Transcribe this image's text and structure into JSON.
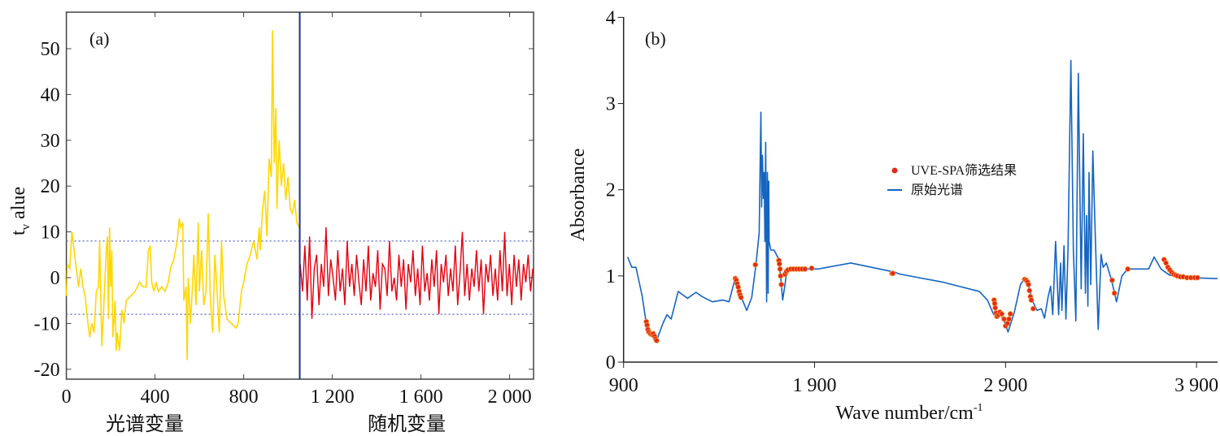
{
  "chart_data": [
    {
      "type": "line",
      "panel_label": "(a)",
      "ylabel": "t",
      "ylabel_sub": "v",
      "ylabel_rest": " alue",
      "xlabel_left": "光谱变量",
      "xlabel_right": "随机变量",
      "xlim": [
        0,
        2108
      ],
      "ylim": [
        -22,
        58
      ],
      "xticks": [
        0,
        400,
        800,
        1200,
        1600,
        2000
      ],
      "xtick_labels": [
        "0",
        "400",
        "800",
        "1 200",
        "1 600",
        "2 000"
      ],
      "yticks": [
        -20,
        -10,
        0,
        10,
        20,
        30,
        40,
        50
      ],
      "ytick_labels": [
        "-20",
        "-10",
        "0",
        "10",
        "20",
        "30",
        "40",
        "50"
      ],
      "divider_x": 1053,
      "threshold": [
        -8,
        8
      ],
      "colors": {
        "spectral": "#ffd700",
        "random": "#e3000f",
        "divider": "#1a2f8c",
        "threshold": "#6f7fd0"
      },
      "spectral_series": {
        "name": "spectral variables",
        "x": [
          0,
          5,
          15,
          25,
          35,
          45,
          55,
          65,
          75,
          85,
          95,
          105,
          115,
          125,
          135,
          145,
          150,
          160,
          170,
          180,
          185,
          190,
          195,
          200,
          205,
          210,
          220,
          225,
          230,
          240,
          250,
          260,
          270,
          290,
          310,
          330,
          345,
          360,
          370,
          378,
          385,
          395,
          405,
          415,
          430,
          445,
          460,
          470,
          485,
          500,
          510,
          515,
          525,
          530,
          540,
          545,
          550,
          560,
          570,
          575,
          585,
          595,
          600,
          610,
          620,
          630,
          640,
          650,
          660,
          670,
          680,
          690,
          700,
          710,
          725,
          745,
          765,
          775,
          790,
          800,
          815,
          830,
          845,
          860,
          870,
          875,
          885,
          895,
          905,
          915,
          925,
          930,
          938,
          945,
          950,
          960,
          970,
          980,
          990,
          1000,
          1010,
          1020,
          1030,
          1040,
          1050
        ],
        "y": [
          -4,
          3,
          2,
          10,
          6,
          2,
          -2,
          2,
          -2,
          -4,
          -9,
          -13,
          -10,
          -12,
          -3,
          -2,
          8,
          -15,
          -5,
          6,
          9,
          -9,
          11,
          -2,
          6,
          -13,
          -5,
          -16,
          -12,
          -16,
          -7,
          -10,
          -5,
          -4,
          -3,
          -1,
          -2,
          -2,
          6,
          7,
          -1,
          -3,
          -1,
          -3,
          -2,
          -3,
          -1,
          2,
          4,
          8,
          13,
          11,
          12,
          -5,
          -2,
          -18,
          0,
          -10,
          -1,
          5,
          -6,
          12,
          -3,
          6,
          -6,
          -3,
          14,
          -5,
          -12,
          5,
          -3,
          -12,
          8,
          -4,
          -9,
          -10,
          -11,
          -10,
          -3,
          -1,
          3,
          5,
          8,
          4,
          11,
          6,
          15,
          19,
          9,
          26,
          22,
          54,
          25,
          37,
          15,
          30,
          20,
          25,
          17,
          22,
          15,
          14,
          17,
          12,
          11
        ]
      },
      "random_series": {
        "name": "random variables",
        "x_start": 1055,
        "x_end": 2105,
        "y": [
          3,
          -3,
          7,
          -5,
          9,
          -9,
          2,
          5,
          -6,
          3,
          -2,
          11,
          -4,
          4,
          0,
          -5,
          6,
          -3,
          2,
          -6,
          8,
          -2,
          3,
          -4,
          5,
          -1,
          -6,
          4,
          -3,
          7,
          -5,
          1,
          -2,
          6,
          -7,
          3,
          2,
          -4,
          8,
          -3,
          0,
          -5,
          5,
          -2,
          4,
          -7,
          3,
          -1,
          6,
          -4,
          2,
          -6,
          7,
          -3,
          1,
          -5,
          4,
          -2,
          6,
          -8,
          3,
          -1,
          5,
          -4,
          2,
          -3,
          7,
          -6,
          1,
          10,
          -4,
          3,
          -5,
          2,
          -2,
          6,
          -3,
          4,
          -8,
          3,
          -1,
          5,
          -4,
          2,
          -5,
          6,
          -3,
          10,
          -4,
          3,
          -6,
          5,
          -2,
          4,
          -5,
          3,
          -1,
          5,
          -3,
          2
        ]
      }
    },
    {
      "type": "line",
      "panel_label": "(b)",
      "xlabel": "Wave number/cm",
      "xlabel_sup": "-1",
      "ylabel": "Absorbance",
      "xlim": [
        900,
        4010
      ],
      "ylim": [
        0,
        4
      ],
      "xticks": [
        900,
        1900,
        2900,
        3900
      ],
      "xtick_labels": [
        "900",
        "1 900",
        "2 900",
        "3 900"
      ],
      "yticks": [
        0,
        1,
        2,
        3,
        4
      ],
      "ytick_labels": [
        "0",
        "1",
        "2",
        "3",
        "4"
      ],
      "legend": {
        "position": "center",
        "items": [
          {
            "label": "UVE-SPA筛选结果",
            "marker": "dot",
            "color": "#e32a1a"
          },
          {
            "label": "原始光谱",
            "marker": "line",
            "color": "#1565c0"
          }
        ]
      },
      "spectrum": {
        "x": [
          921,
          943,
          965,
          997,
          1019,
          1051,
          1073,
          1106,
          1127,
          1149,
          1186,
          1235,
          1279,
          1311,
          1365,
          1420,
          1452,
          1484,
          1517,
          1545,
          1571,
          1593,
          1610,
          1615,
          1619,
          1623,
          1627,
          1632,
          1636,
          1640,
          1644,
          1649,
          1653,
          1657,
          1660,
          1662,
          1671,
          1688,
          1711,
          1722,
          1733,
          1755,
          1798,
          1917,
          2090,
          2307,
          2350,
          2567,
          2762,
          2805,
          2838,
          2870,
          2892,
          2913,
          2946,
          2978,
          3000,
          3021,
          3043,
          3065,
          3087,
          3104,
          3123,
          3136,
          3147,
          3162,
          3178,
          3188,
          3195,
          3206,
          3216,
          3227,
          3242,
          3255,
          3268,
          3281,
          3296,
          3307,
          3318,
          3324,
          3331,
          3337,
          3346,
          3357,
          3368,
          3385,
          3400,
          3411,
          3428,
          3455,
          3481,
          3509,
          3539,
          3649,
          3678,
          3714,
          3758,
          3866,
          3996,
          4010
        ],
        "y": [
          1.22,
          1.1,
          1.1,
          0.77,
          0.45,
          0.32,
          0.25,
          0.45,
          0.55,
          0.5,
          0.82,
          0.74,
          0.81,
          0.76,
          0.7,
          0.72,
          0.7,
          0.97,
          0.75,
          0.6,
          0.75,
          1.13,
          1.5,
          2.3,
          2.9,
          1.8,
          2.4,
          1.9,
          2.2,
          1.4,
          2.55,
          0.7,
          2.2,
          0.8,
          2.1,
          1.4,
          1.3,
          1.3,
          1.2,
          1.0,
          0.72,
          1.05,
          1.08,
          1.08,
          1.15,
          1.05,
          1.02,
          0.93,
          0.82,
          0.72,
          0.55,
          0.58,
          0.48,
          0.35,
          0.58,
          0.9,
          0.97,
          0.88,
          0.7,
          0.6,
          0.62,
          0.51,
          0.76,
          0.88,
          0.55,
          1.4,
          0.55,
          1.15,
          0.6,
          1.35,
          0.5,
          1.3,
          3.5,
          1.3,
          0.48,
          3.35,
          0.85,
          2.65,
          0.8,
          1.7,
          0.65,
          2.2,
          0.9,
          2.45,
          1.6,
          0.38,
          1.25,
          1.1,
          1.15,
          0.95,
          0.7,
          1.0,
          1.08,
          1.08,
          1.22,
          1.08,
          1.01,
          0.98,
          0.97,
          0.97
        ]
      },
      "selected": {
        "x": [
          1019,
          1023,
          1027,
          1032,
          1040,
          1048,
          1055,
          1062,
          1068,
          1073,
          1485,
          1490,
          1495,
          1500,
          1505,
          1510,
          1515,
          1590,
          1713,
          1716,
          1719,
          1722,
          1726,
          1745,
          1752,
          1760,
          1775,
          1790,
          1805,
          1820,
          1835,
          1850,
          1885,
          2305,
          2310,
          2840,
          2843,
          2846,
          2850,
          2855,
          2862,
          2870,
          2880,
          2892,
          2900,
          2910,
          2918,
          2925,
          3000,
          3008,
          3015,
          3020,
          3025,
          3030,
          3035,
          3045,
          3458,
          3470,
          3540,
          3730,
          3740,
          3750,
          3760,
          3770,
          3780,
          3790,
          3800,
          3815,
          3830,
          3850,
          3870,
          3890,
          3905
        ],
        "y": [
          0.47,
          0.43,
          0.38,
          0.35,
          0.33,
          0.32,
          0.33,
          0.3,
          0.27,
          0.25,
          0.97,
          0.95,
          0.91,
          0.87,
          0.82,
          0.78,
          0.75,
          1.13,
          1.18,
          1.14,
          1.08,
          1.0,
          0.9,
          1.02,
          1.05,
          1.07,
          1.08,
          1.08,
          1.08,
          1.08,
          1.08,
          1.08,
          1.09,
          1.03,
          1.03,
          0.72,
          0.68,
          0.63,
          0.57,
          0.53,
          0.55,
          0.58,
          0.56,
          0.5,
          0.42,
          0.45,
          0.5,
          0.56,
          0.96,
          0.95,
          0.93,
          0.9,
          0.83,
          0.76,
          0.72,
          0.62,
          0.95,
          0.8,
          1.08,
          1.19,
          1.15,
          1.1,
          1.07,
          1.04,
          1.02,
          1.01,
          1.0,
          0.99,
          0.99,
          0.98,
          0.98,
          0.98,
          0.98
        ]
      }
    }
  ]
}
